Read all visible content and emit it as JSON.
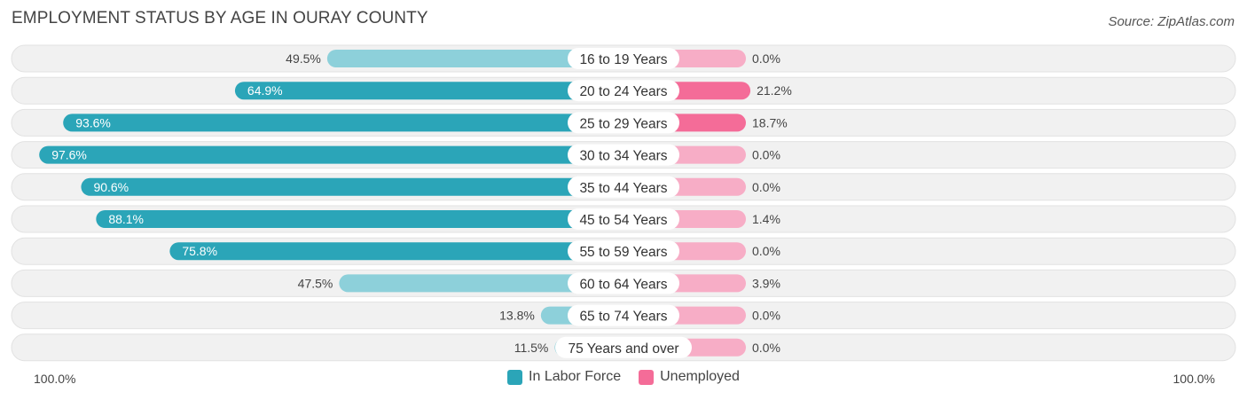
{
  "title": "EMPLOYMENT STATUS BY AGE IN OURAY COUNTY",
  "source": "Source: ZipAtlas.com",
  "colors": {
    "labor_force": "#2ba5b8",
    "labor_force_light": "#8dd0da",
    "unemployed": "#f46c98",
    "unemployed_light": "#f7adc6",
    "row_bg": "#f1f1f1",
    "row_border": "#e2e2e2"
  },
  "chart_data": {
    "type": "bar",
    "orientation": "horizontal-diverging",
    "categories": [
      "16 to 19 Years",
      "20 to 24 Years",
      "25 to 29 Years",
      "30 to 34 Years",
      "35 to 44 Years",
      "45 to 54 Years",
      "55 to 59 Years",
      "60 to 64 Years",
      "65 to 74 Years",
      "75 Years and over"
    ],
    "series": [
      {
        "name": "In Labor Force",
        "values": [
          49.5,
          64.9,
          93.6,
          97.6,
          90.6,
          88.1,
          75.8,
          47.5,
          13.8,
          11.5
        ],
        "labels": [
          "49.5%",
          "64.9%",
          "93.6%",
          "97.6%",
          "90.6%",
          "88.1%",
          "75.8%",
          "47.5%",
          "13.8%",
          "11.5%"
        ]
      },
      {
        "name": "Unemployed",
        "values": [
          0.0,
          21.2,
          18.7,
          0.0,
          0.0,
          1.4,
          0.0,
          3.9,
          0.0,
          0.0
        ],
        "labels": [
          "0.0%",
          "21.2%",
          "18.7%",
          "0.0%",
          "0.0%",
          "1.4%",
          "0.0%",
          "3.9%",
          "0.0%",
          "0.0%"
        ]
      }
    ],
    "xlim": [
      0,
      100
    ],
    "axis_left_label": "100.0%",
    "axis_right_label": "100.0%",
    "legend": [
      "In Labor Force",
      "Unemployed"
    ],
    "legend_position": "bottom-center"
  }
}
